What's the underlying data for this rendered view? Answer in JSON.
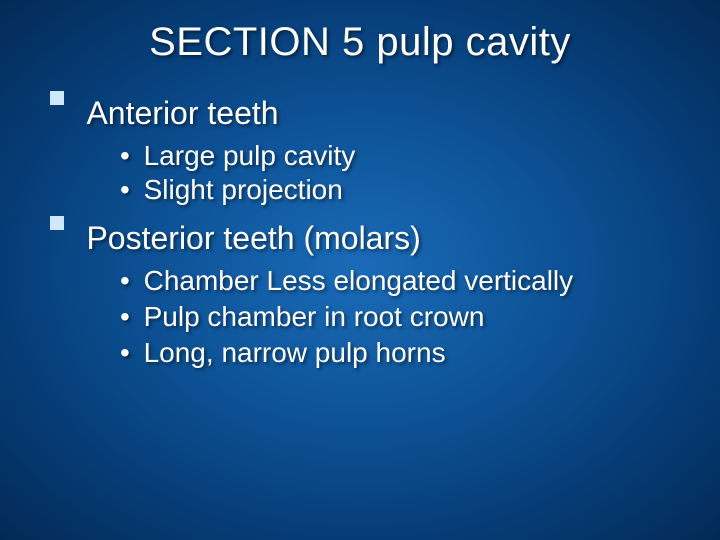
{
  "slide": {
    "title": "SECTION 5 pulp cavity",
    "title_fontsize": 40,
    "title_color": "#ffffff",
    "background_gradient": {
      "type": "radial",
      "stops": [
        "#1a6bb8",
        "#0d5296",
        "#063d77",
        "#032a56"
      ]
    },
    "bullet_square_color": "#cfe8ff",
    "text_color": "#ffffff",
    "text_shadow": "2px 2px 3px rgba(0,0,0,0.5)",
    "font_family": "Verdana, Tahoma, Arial, sans-serif",
    "sections": [
      {
        "heading": "Anterior teeth",
        "heading_fontsize": 32,
        "items": [
          "Large pulp cavity",
          "Slight projection"
        ],
        "item_fontsize": 28
      },
      {
        "heading": "Posterior teeth (molars)",
        "heading_fontsize": 32,
        "items": [
          "Chamber Less elongated vertically",
          "Pulp chamber in root crown",
          "Long, narrow pulp horns"
        ],
        "item_fontsize": 28
      }
    ]
  }
}
